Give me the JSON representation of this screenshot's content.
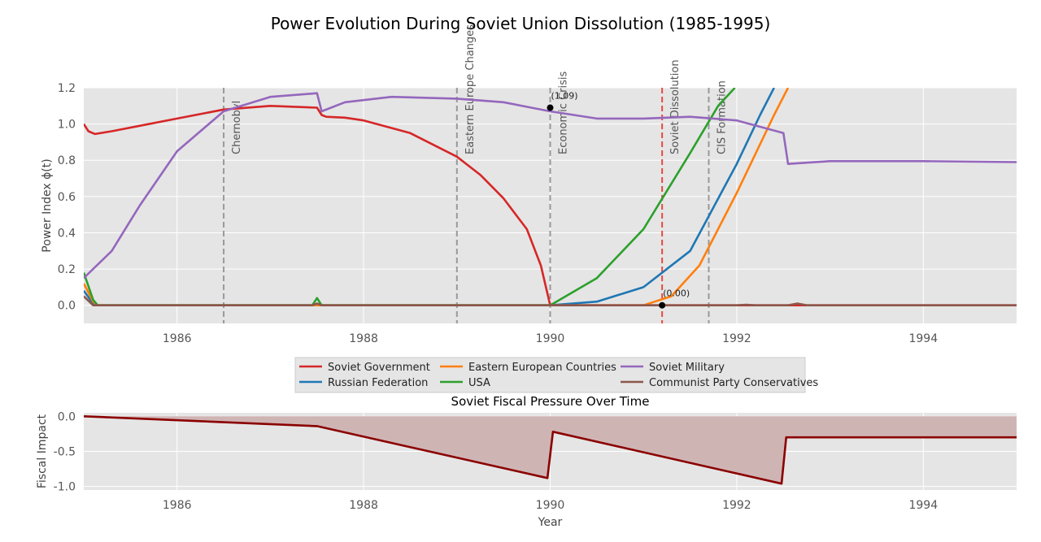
{
  "figure": {
    "title": "Power Evolution During Soviet Union Dissolution (1985-1995)"
  },
  "chart_data": [
    {
      "type": "line",
      "title": "",
      "xlabel": "",
      "ylabel": "Power Index ϕ(t)",
      "xlim": [
        1985,
        1995
      ],
      "ylim": [
        -0.1,
        1.2
      ],
      "x_ticks": [
        1986,
        1988,
        1990,
        1992,
        1994
      ],
      "y_ticks": [
        0.0,
        0.2,
        0.4,
        0.6,
        0.8,
        1.0,
        1.2
      ],
      "grid": true,
      "legend_position": "below",
      "series": [
        {
          "name": "Soviet Government",
          "color": "#d62728",
          "points": [
            [
              1985.0,
              1.0
            ],
            [
              1985.05,
              0.96
            ],
            [
              1985.12,
              0.945
            ],
            [
              1985.3,
              0.96
            ],
            [
              1985.6,
              0.99
            ],
            [
              1986.0,
              1.03
            ],
            [
              1986.5,
              1.08
            ],
            [
              1987.0,
              1.1
            ],
            [
              1987.5,
              1.09
            ],
            [
              1987.55,
              1.05
            ],
            [
              1987.6,
              1.04
            ],
            [
              1987.8,
              1.035
            ],
            [
              1988.0,
              1.02
            ],
            [
              1988.5,
              0.95
            ],
            [
              1989.0,
              0.82
            ],
            [
              1989.25,
              0.72
            ],
            [
              1989.5,
              0.59
            ],
            [
              1989.75,
              0.42
            ],
            [
              1989.9,
              0.22
            ],
            [
              1990.0,
              0.0
            ],
            [
              1995.0,
              0.0
            ]
          ]
        },
        {
          "name": "Russian Federation",
          "color": "#1f77b4",
          "points": [
            [
              1985.0,
              0.08
            ],
            [
              1985.1,
              0.01
            ],
            [
              1985.15,
              0.0
            ],
            [
              1990.0,
              0.0
            ],
            [
              1990.5,
              0.02
            ],
            [
              1991.0,
              0.1
            ],
            [
              1991.5,
              0.3
            ],
            [
              1992.0,
              0.78
            ],
            [
              1992.25,
              1.05
            ],
            [
              1992.4,
              1.2
            ]
          ]
        },
        {
          "name": "Eastern European Countries",
          "color": "#ff7f0e",
          "points": [
            [
              1985.0,
              0.12
            ],
            [
              1985.1,
              0.02
            ],
            [
              1985.15,
              0.0
            ],
            [
              1991.0,
              0.0
            ],
            [
              1991.3,
              0.05
            ],
            [
              1991.6,
              0.22
            ],
            [
              1992.0,
              0.62
            ],
            [
              1992.4,
              1.05
            ],
            [
              1992.55,
              1.2
            ]
          ]
        },
        {
          "name": "USA",
          "color": "#2ca02c",
          "points": [
            [
              1985.0,
              0.18
            ],
            [
              1985.1,
              0.03
            ],
            [
              1985.15,
              0.0
            ],
            [
              1987.45,
              0.0
            ],
            [
              1987.5,
              0.04
            ],
            [
              1987.55,
              0.0
            ],
            [
              1990.0,
              0.0
            ],
            [
              1990.5,
              0.15
            ],
            [
              1991.0,
              0.42
            ],
            [
              1991.5,
              0.84
            ],
            [
              1991.8,
              1.1
            ],
            [
              1991.98,
              1.2
            ]
          ]
        },
        {
          "name": "Soviet Military",
          "color": "#9467bd",
          "points": [
            [
              1985.0,
              0.15
            ],
            [
              1985.3,
              0.3
            ],
            [
              1985.6,
              0.55
            ],
            [
              1986.0,
              0.85
            ],
            [
              1986.5,
              1.07
            ],
            [
              1987.0,
              1.15
            ],
            [
              1987.5,
              1.17
            ],
            [
              1987.55,
              1.07
            ],
            [
              1987.8,
              1.12
            ],
            [
              1988.3,
              1.15
            ],
            [
              1989.0,
              1.14
            ],
            [
              1989.5,
              1.12
            ],
            [
              1990.0,
              1.07
            ],
            [
              1990.5,
              1.03
            ],
            [
              1991.0,
              1.03
            ],
            [
              1991.5,
              1.04
            ],
            [
              1992.0,
              1.02
            ],
            [
              1992.5,
              0.95
            ],
            [
              1992.55,
              0.78
            ],
            [
              1993.0,
              0.795
            ],
            [
              1994.0,
              0.795
            ],
            [
              1995.0,
              0.79
            ]
          ]
        },
        {
          "name": "Communist Party Conservatives",
          "color": "#8c564b",
          "points": [
            [
              1985.0,
              0.05
            ],
            [
              1985.1,
              0.0
            ],
            [
              1987.45,
              0.0
            ],
            [
              1987.5,
              0.01
            ],
            [
              1987.55,
              0.0
            ],
            [
              1992.0,
              0.0
            ],
            [
              1992.1,
              0.003
            ],
            [
              1992.2,
              0.0
            ],
            [
              1992.55,
              0.0
            ],
            [
              1992.65,
              0.01
            ],
            [
              1992.75,
              0.0
            ],
            [
              1995.0,
              0.0
            ]
          ]
        }
      ],
      "annotations": {
        "events": [
          {
            "x": 1986.5,
            "label": "Chernobyl",
            "color": "#999999"
          },
          {
            "x": 1989.0,
            "label": "Eastern Europe Changes",
            "color": "#999999"
          },
          {
            "x": 1990.0,
            "label": "Economic Crisis",
            "color": "#999999"
          },
          {
            "x": 1991.2,
            "label": "Soviet Dissolution",
            "color": "#e8483f"
          },
          {
            "x": 1991.7,
            "label": "CIS Formation",
            "color": "#999999"
          }
        ],
        "points": [
          {
            "x": 1990.0,
            "y": 1.09,
            "label": "(1.09)"
          },
          {
            "x": 1991.2,
            "y": 0.0,
            "label": "(0.00)"
          }
        ]
      }
    },
    {
      "type": "area",
      "title": "Soviet Fiscal Pressure Over Time",
      "xlabel": "Year",
      "ylabel": "Fiscal Impact",
      "xlim": [
        1985,
        1995
      ],
      "ylim": [
        -1.0,
        0.0
      ],
      "x_ticks": [
        1986,
        1988,
        1990,
        1992,
        1994
      ],
      "y_ticks": [
        0.0,
        -0.5,
        -1.0
      ],
      "y_tick_labels": [
        "0.0",
        "-0.5",
        "-1.0"
      ],
      "grid": true,
      "color": "#8b0000",
      "fill_color": "#cfb4b4",
      "points": [
        [
          1985.0,
          0.0
        ],
        [
          1987.5,
          -0.14
        ],
        [
          1989.97,
          -0.88
        ],
        [
          1990.03,
          -0.22
        ],
        [
          1992.48,
          -0.96
        ],
        [
          1992.53,
          -0.3
        ],
        [
          1995.0,
          -0.3
        ]
      ]
    }
  ]
}
